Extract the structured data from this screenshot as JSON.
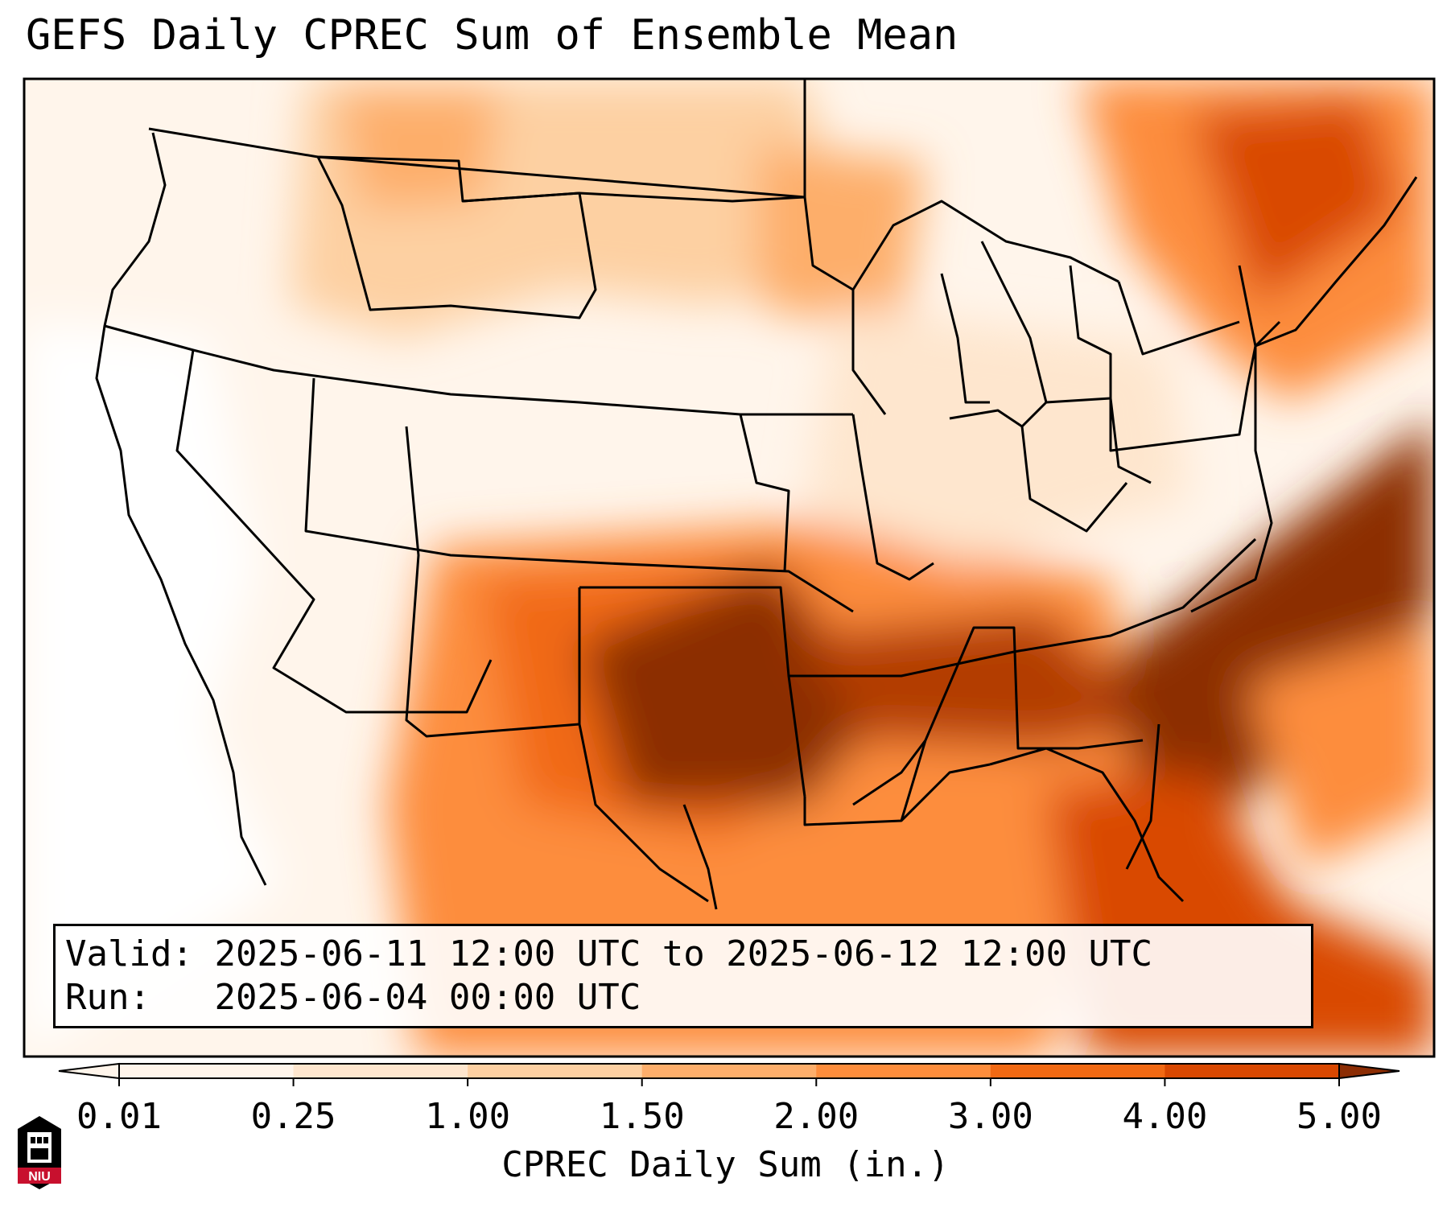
{
  "title": "GEFS Daily CPREC Sum of Ensemble Mean",
  "info": {
    "valid_label": "Valid:",
    "valid_value": "2025-06-11 12:00 UTC to 2025-06-12 12:00 UTC",
    "run_label": "Run:",
    "run_value": "2025-06-04 00:00 UTC"
  },
  "colorbar": {
    "label": "CPREC Daily Sum (in.)",
    "ticks": [
      "0.01",
      "0.25",
      "1.00",
      "1.50",
      "2.00",
      "3.00",
      "4.00",
      "5.00"
    ],
    "colors": [
      "#fff5eb",
      "#fee6ce",
      "#fdd0a2",
      "#fdae6b",
      "#fd8d3c",
      "#f16913",
      "#d94801",
      "#8c2d04"
    ],
    "extend": "both"
  },
  "logo": {
    "text": "NIU",
    "color": "#c8102e"
  }
}
